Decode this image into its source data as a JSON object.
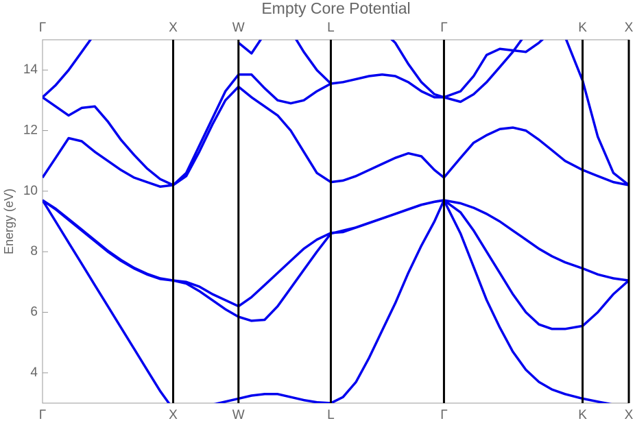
{
  "chart_data": {
    "type": "line",
    "title": "Empty Core Potential",
    "y_label": "Energy (eV)",
    "x": [
      0,
      0.1,
      0.2,
      0.3,
      0.4,
      0.5,
      0.6,
      0.7,
      0.8,
      0.9,
      1,
      1.1,
      1.2,
      1.3,
      1.4,
      1.5,
      1.6,
      1.7,
      1.8,
      1.9,
      2,
      2.1,
      2.207,
      2.3,
      2.4,
      2.5,
      2.6,
      2.7,
      2.8,
      2.9,
      3,
      3.073,
      3.2,
      3.3,
      3.4,
      3.5,
      3.6,
      3.7,
      3.8,
      3.9,
      4,
      4.134,
      4.25,
      4.37,
      4.488
    ],
    "series": [
      {
        "color": "#0000ee",
        "values": [
          9.7,
          9.0,
          8.3,
          7.6,
          6.9,
          6.2,
          5.5,
          4.8,
          4.1,
          3.4,
          2.8,
          2.85,
          2.9,
          2.95,
          3.05,
          3.15,
          3.25,
          3.3,
          3.3,
          3.2,
          3.1,
          3.03,
          3.0,
          3.2,
          3.7,
          4.5,
          5.4,
          6.3,
          7.3,
          8.2,
          9.0,
          9.7,
          8.6,
          7.5,
          6.4,
          5.5,
          4.7,
          4.1,
          3.7,
          3.45,
          3.3,
          3.15,
          3.05,
          2.95,
          2.9
        ]
      },
      {
        "color": "#0000ee",
        "values": [
          9.7,
          9.4,
          9.05,
          8.7,
          8.35,
          8.0,
          7.7,
          7.45,
          7.25,
          7.1,
          7.05,
          6.95,
          6.7,
          6.4,
          6.1,
          5.85,
          5.72,
          5.75,
          6.2,
          6.8,
          7.4,
          8.0,
          8.6,
          8.7,
          8.8,
          8.95,
          9.1,
          9.25,
          9.4,
          9.55,
          9.65,
          9.7,
          9.3,
          8.7,
          8.0,
          7.3,
          6.6,
          6.0,
          5.6,
          5.45,
          5.45,
          5.55,
          6.0,
          6.6,
          7.05
        ]
      },
      {
        "color": "#0000ee",
        "values": [
          9.7,
          9.42,
          9.08,
          8.73,
          8.38,
          8.03,
          7.73,
          7.47,
          7.27,
          7.12,
          7.05,
          7.0,
          6.85,
          6.6,
          6.4,
          6.2,
          6.5,
          6.9,
          7.3,
          7.7,
          8.1,
          8.4,
          8.62,
          8.65,
          8.8,
          8.95,
          9.1,
          9.25,
          9.4,
          9.55,
          9.65,
          9.7,
          9.6,
          9.45,
          9.25,
          9.0,
          8.7,
          8.4,
          8.1,
          7.85,
          7.65,
          7.45,
          7.25,
          7.12,
          7.05
        ]
      },
      {
        "color": "#0000ee",
        "values": [
          10.45,
          11.1,
          11.75,
          11.65,
          11.3,
          11.0,
          10.7,
          10.45,
          10.3,
          10.15,
          10.2,
          10.5,
          11.3,
          12.2,
          13.0,
          13.45,
          13.1,
          12.8,
          12.5,
          12.0,
          11.3,
          10.6,
          10.3,
          10.35,
          10.5,
          10.7,
          10.9,
          11.1,
          11.25,
          11.15,
          10.7,
          10.45,
          11.1,
          11.6,
          11.85,
          12.05,
          12.1,
          12.0,
          11.7,
          11.35,
          11.0,
          10.7,
          10.5,
          10.3,
          10.2
        ]
      },
      {
        "color": "#0000ee",
        "values": [
          13.1,
          12.8,
          12.5,
          12.75,
          12.8,
          12.3,
          11.7,
          11.2,
          10.75,
          10.4,
          10.2,
          10.6,
          11.5,
          12.4,
          13.3,
          13.85,
          13.85,
          13.4,
          13.0,
          12.9,
          13.0,
          13.3,
          13.55,
          13.6,
          13.7,
          13.8,
          13.85,
          13.8,
          13.6,
          13.3,
          13.1,
          13.1,
          12.95,
          13.2,
          13.6,
          14.1,
          14.6,
          15.2,
          null,
          null,
          null,
          null,
          null,
          null,
          null
        ]
      },
      {
        "color": "#0000ee",
        "values": [
          13.1,
          13.5,
          14.0,
          14.6,
          15.2,
          null,
          null,
          null,
          null,
          null,
          null,
          null,
          null,
          null,
          null,
          14.9,
          14.55,
          15.2,
          null,
          15.3,
          14.6,
          14.0,
          13.55,
          null,
          null,
          null,
          15.3,
          14.9,
          14.2,
          13.6,
          13.2,
          13.1,
          13.3,
          13.8,
          14.5,
          14.7,
          14.65,
          14.6,
          14.9,
          15.3,
          15.1,
          13.65,
          11.8,
          10.6,
          10.2
        ]
      }
    ],
    "xlim": [
      0,
      4.488
    ],
    "xticks": [
      {
        "value": 0,
        "label": "Γ"
      },
      {
        "value": 1,
        "label": "X"
      },
      {
        "value": 1.5,
        "label": "W"
      },
      {
        "value": 2.207,
        "label": "L"
      },
      {
        "value": 3.073,
        "label": "Γ"
      },
      {
        "value": 4.134,
        "label": "K"
      },
      {
        "value": 4.488,
        "label": "X"
      }
    ],
    "ylim": [
      3,
      15
    ],
    "yticks": [
      4,
      6,
      8,
      10,
      12,
      14
    ],
    "symmetry_line_color": "#000000"
  }
}
